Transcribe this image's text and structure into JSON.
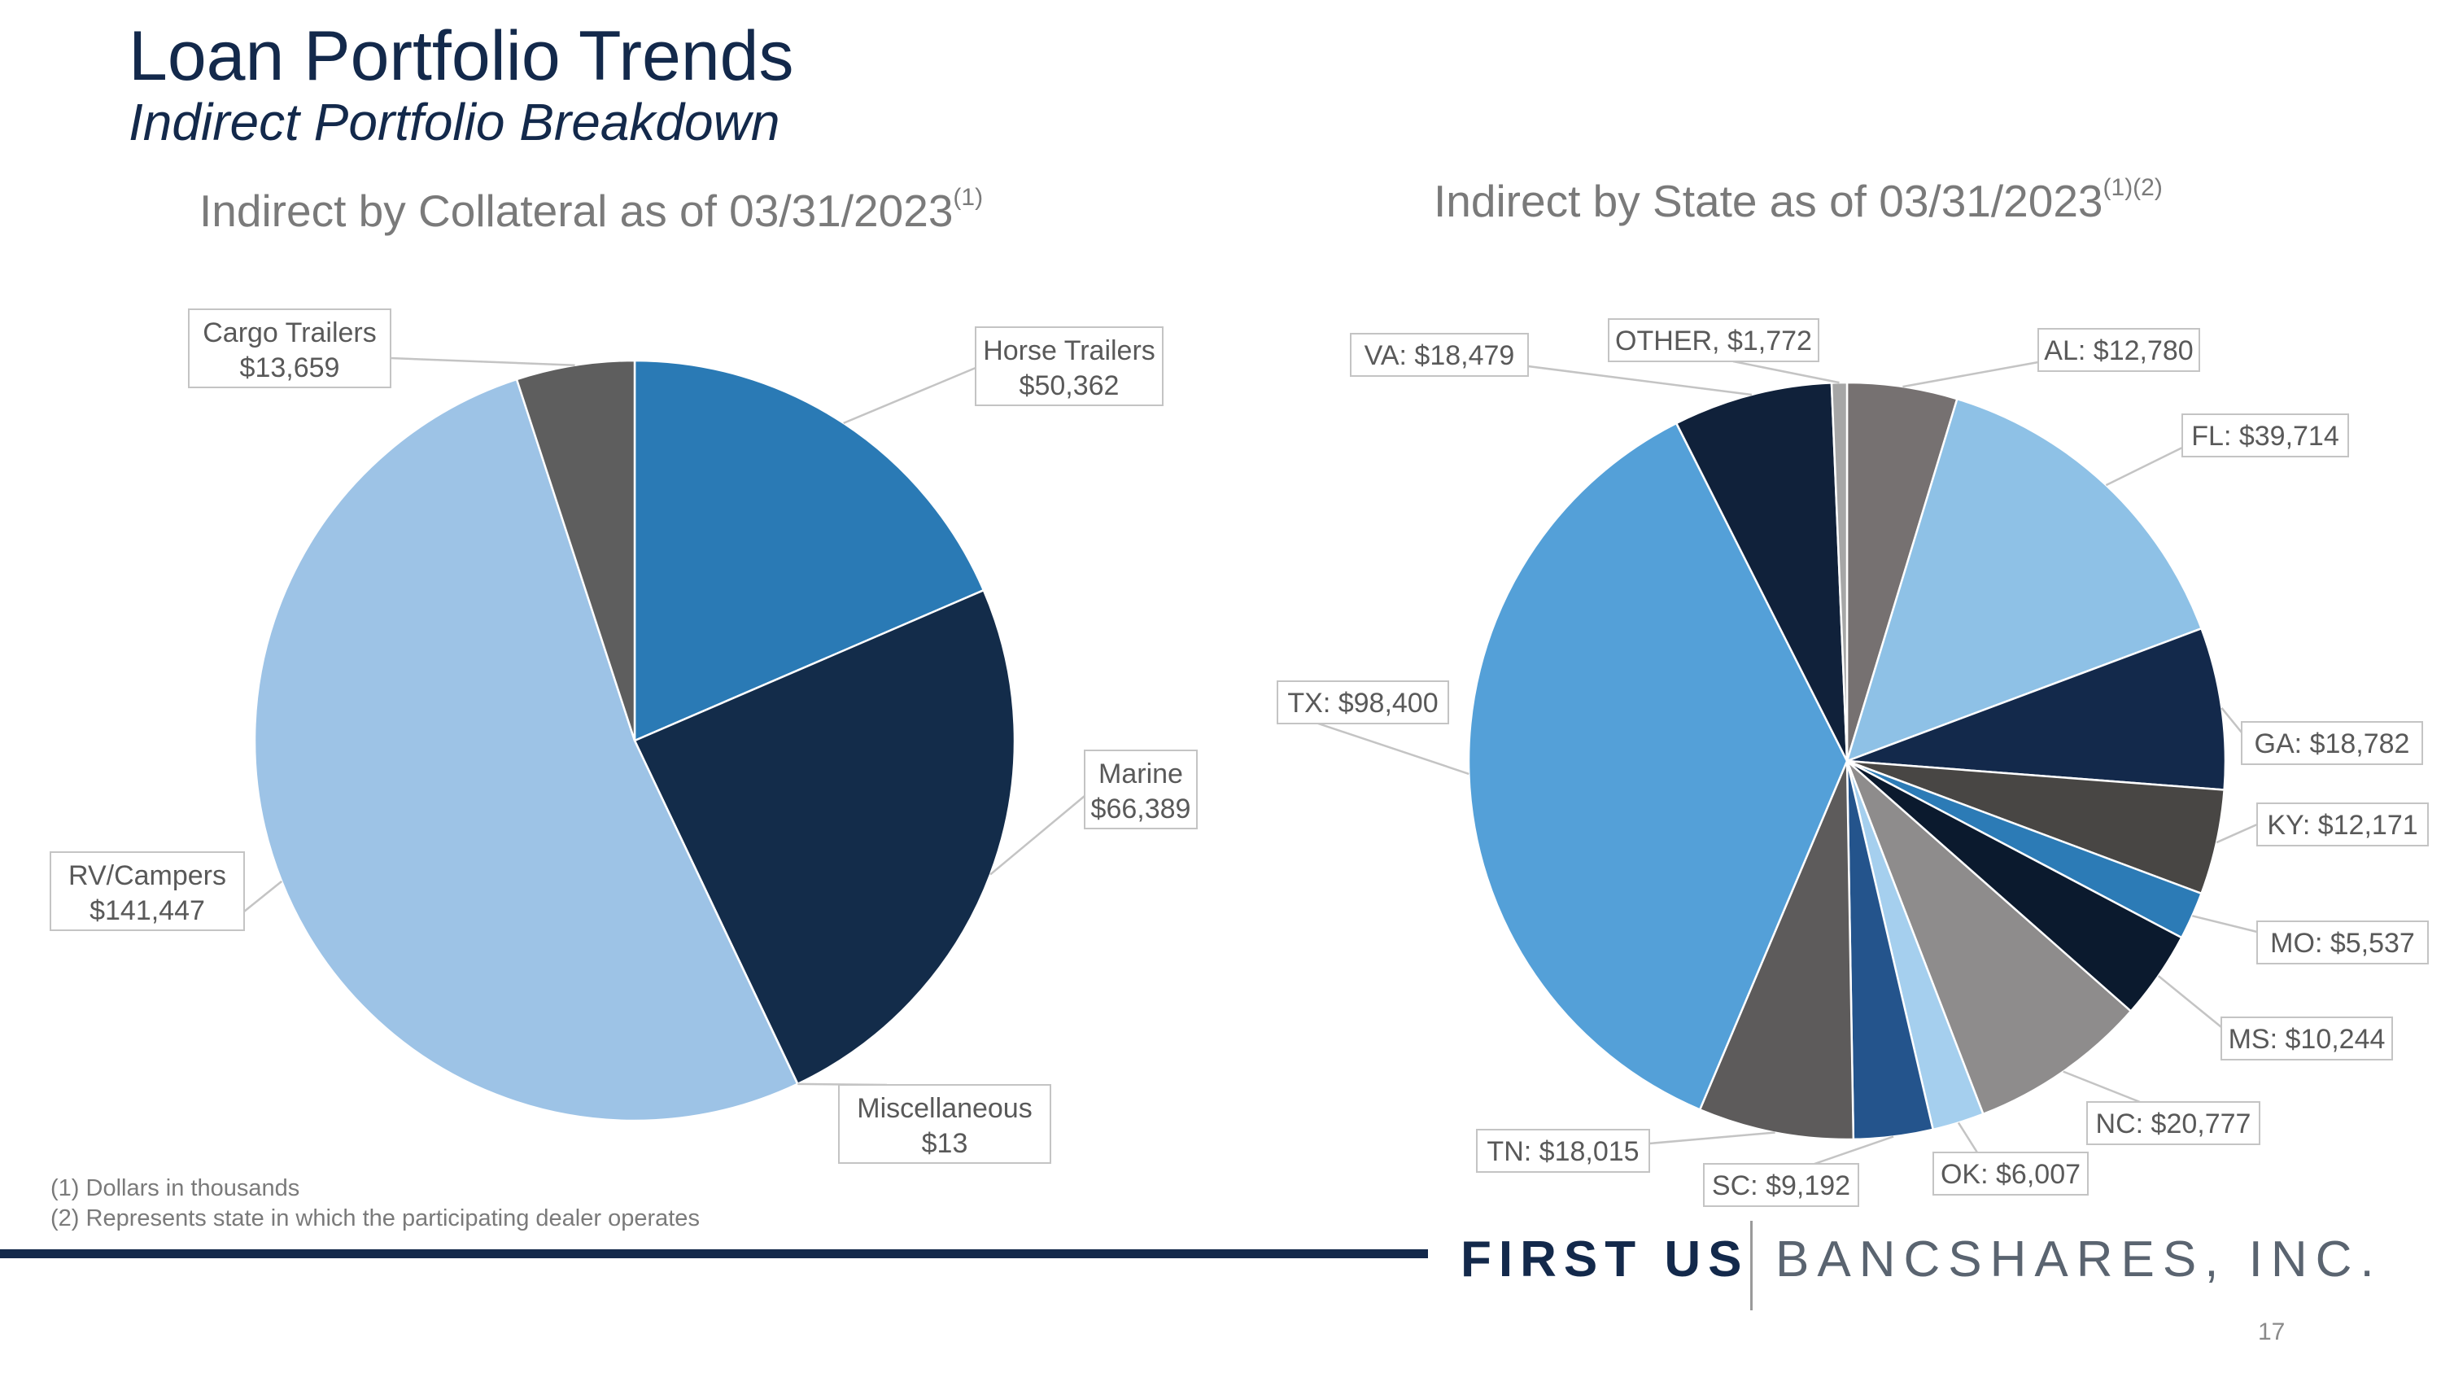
{
  "slide": {
    "title": "Loan Portfolio Trends",
    "subtitle": "Indirect Portfolio Breakdown",
    "page_number": "17"
  },
  "footnotes": [
    "(1) Dollars in thousands",
    "(2) Represents state in which the participating dealer operates"
  ],
  "logo": {
    "first": "FIRST US",
    "second": "BANCSHARES, INC."
  },
  "colors": {
    "navy": "#13294b",
    "gray_text": "#7a7a7a"
  },
  "chart_data": [
    {
      "type": "pie",
      "title": "Indirect by Collateral as of 03/31/2023",
      "title_superscript": "(1)",
      "units": "Dollars in thousands",
      "start_angle_deg": 0,
      "direction": "clockwise",
      "slices": [
        {
          "name": "Horse Trailers",
          "value": 50362,
          "value_label": "$50,362",
          "color": "#2a7ab5"
        },
        {
          "name": "Marine",
          "value": 66389,
          "value_label": "$66,389",
          "color": "#132c4a"
        },
        {
          "name": "Miscellaneous",
          "value": 13,
          "value_label": "$13",
          "color": "#5b5b5b"
        },
        {
          "name": "RV/Campers",
          "value": 141447,
          "value_label": "$141,447",
          "color": "#9dc3e6"
        },
        {
          "name": "Cargo Trailers",
          "value": 13659,
          "value_label": "$13,659",
          "color": "#5e5e5e"
        }
      ]
    },
    {
      "type": "pie",
      "title": "Indirect by State as of 03/31/2023",
      "title_superscript": "(1)(2)",
      "units": "Dollars in thousands",
      "start_angle_deg": 0,
      "direction": "clockwise",
      "slices": [
        {
          "name": "AL",
          "value": 12780,
          "value_label": "$12,780",
          "color": "#767171"
        },
        {
          "name": "FL",
          "value": 39714,
          "value_label": "$39,714",
          "color": "#8ec1e6"
        },
        {
          "name": "GA",
          "value": 18782,
          "value_label": "$18,782",
          "color": "#13294b"
        },
        {
          "name": "KY",
          "value": 12171,
          "value_label": "$12,171",
          "color": "#484644"
        },
        {
          "name": "MO",
          "value": 5537,
          "value_label": "$5,537",
          "color": "#2c7bb6"
        },
        {
          "name": "MS",
          "value": 10244,
          "value_label": "$10,244",
          "color": "#0b1a2e"
        },
        {
          "name": "NC",
          "value": 20777,
          "value_label": "$20,777",
          "color": "#8e8c8c"
        },
        {
          "name": "OK",
          "value": 6007,
          "value_label": "$6,007",
          "color": "#a5cfee"
        },
        {
          "name": "SC",
          "value": 9192,
          "value_label": "$9,192",
          "color": "#24548c"
        },
        {
          "name": "TN",
          "value": 18015,
          "value_label": "$18,015",
          "color": "#5d5b5b"
        },
        {
          "name": "TX",
          "value": 98400,
          "value_label": "$98,400",
          "color": "#54a0d8"
        },
        {
          "name": "VA",
          "value": 18479,
          "value_label": "$18,479",
          "color": "#10213a"
        },
        {
          "name": "OTHER",
          "value": 1772,
          "value_label": "$1,772",
          "color": "#a6a6a6"
        }
      ]
    }
  ]
}
